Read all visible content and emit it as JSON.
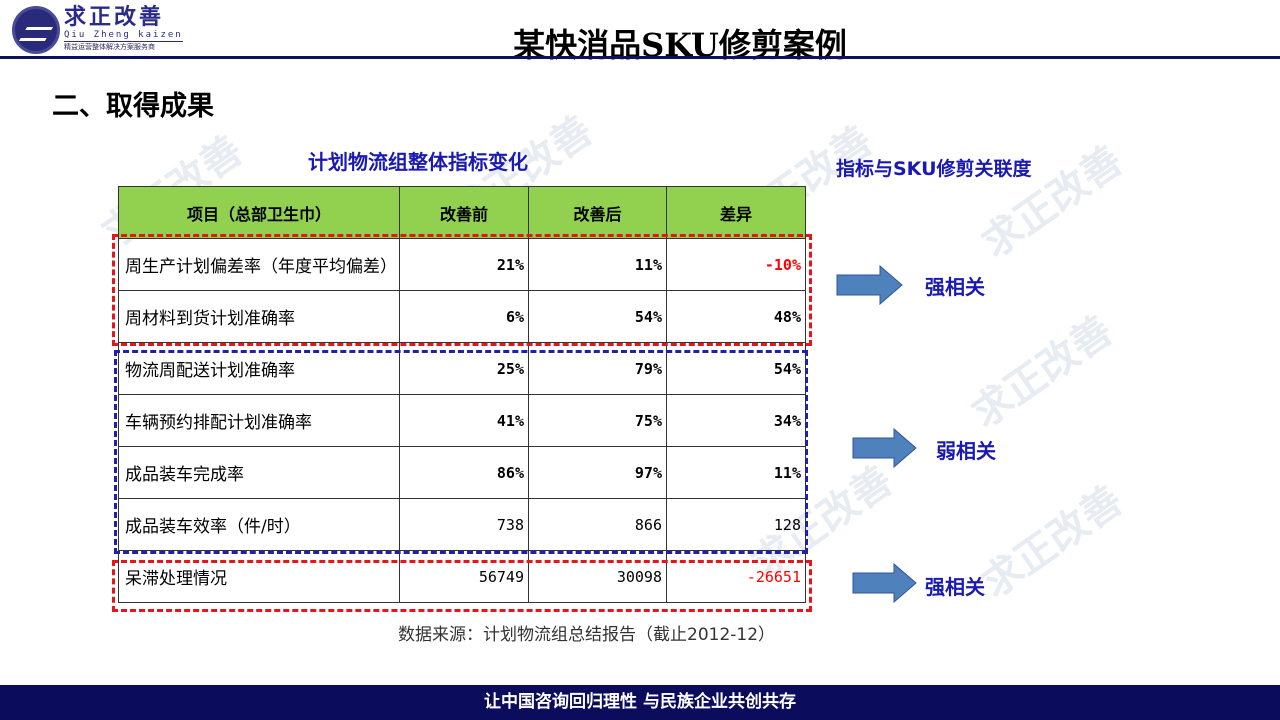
{
  "brand": {
    "cn": "求正改善",
    "en": "Qiu Zheng kaizen",
    "sub": "精益运营整体解决方案服务商"
  },
  "title": "某快消品SKU修剪案例",
  "section": "二、取得成果",
  "table_caption": "计划物流组整体指标变化",
  "right_caption": "指标与SKU修剪关联度",
  "watermark": "求正改善",
  "table": {
    "headers": [
      "项目（总部卫生巾）",
      "改善前",
      "改善后",
      "差异"
    ],
    "rows": [
      [
        "周生产计划偏差率（年度平均偏差）",
        "21%",
        "11%",
        "-10%"
      ],
      [
        "周材料到货计划准确率",
        "6%",
        "54%",
        "48%"
      ],
      [
        "物流周配送计划准确率",
        "25%",
        "79%",
        "54%"
      ],
      [
        "车辆预约排配计划准确率",
        "41%",
        "75%",
        "34%"
      ],
      [
        "成品装车完成率",
        "86%",
        "97%",
        "11%"
      ],
      [
        "成品装车效率（件/时）",
        "738",
        "866",
        "128"
      ],
      [
        "呆滞处理情况",
        "56749",
        "30098",
        "-26651"
      ]
    ]
  },
  "relations": [
    "强相关",
    "弱相关",
    "强相关"
  ],
  "source": "数据来源：计划物流组总结报告（截止2012-12）",
  "footer": "让中国咨询回归理性  与民族企业共创共存",
  "colors": {
    "header_green": "#92d050",
    "accent_blue": "#1a1ab0",
    "negative": "#ff0000",
    "navy": "#0c0c5c",
    "arrow": "#4f81bd"
  }
}
